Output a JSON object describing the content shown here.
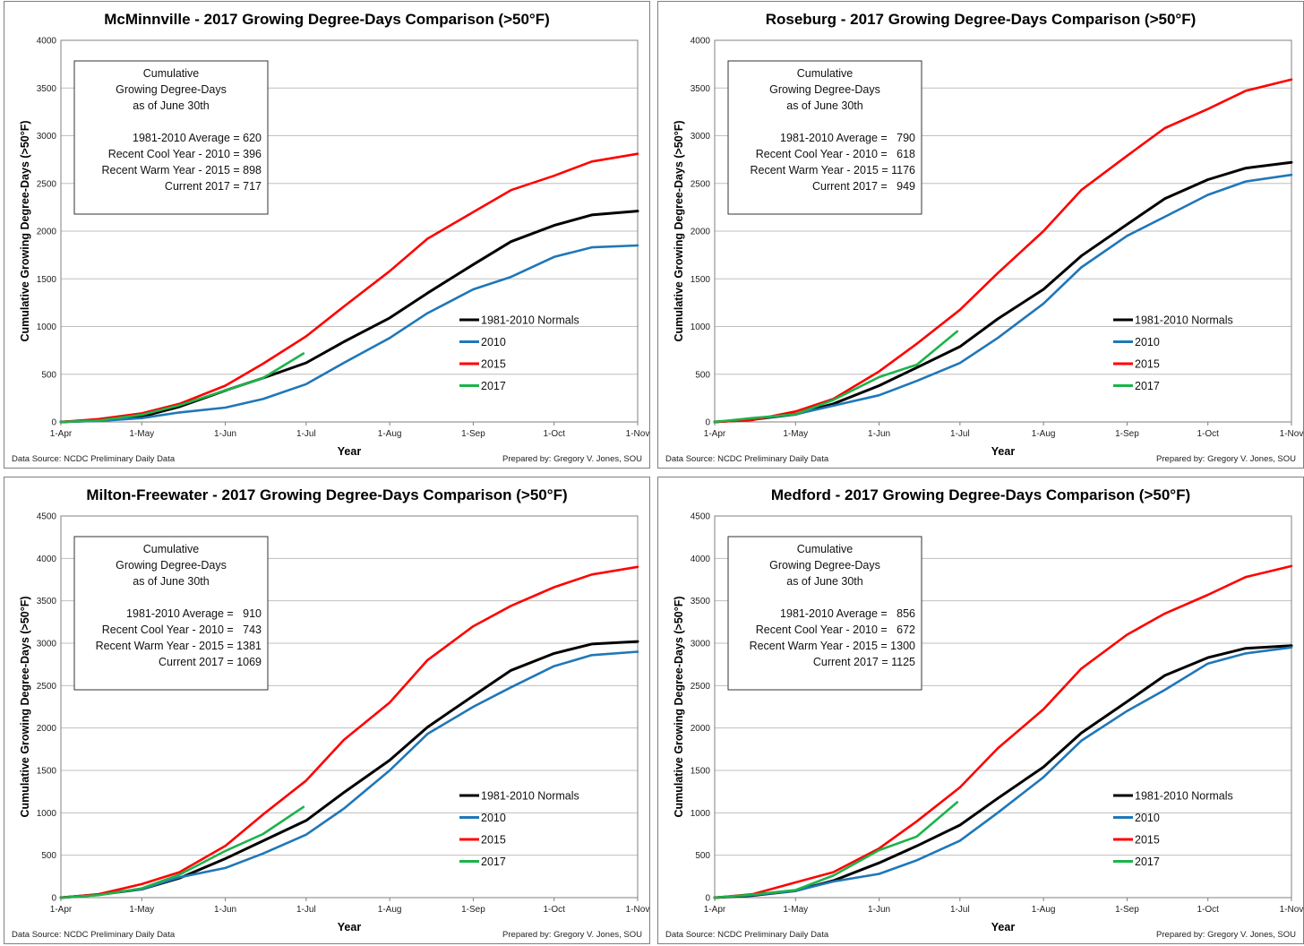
{
  "common": {
    "xlabel": "Year",
    "ylabel": "Cumulative Growing Degree-Days (>50°F)",
    "source": "Data Source: NCDC Preliminary Daily Data",
    "credit": "Prepared by: Gregory V. Jones, SOU",
    "x_ticks": [
      "1-Apr",
      "1-May",
      "1-Jun",
      "1-Jul",
      "1-Aug",
      "1-Sep",
      "1-Oct",
      "1-Nov"
    ],
    "x_tick_days": [
      0,
      30,
      61,
      91,
      122,
      153,
      183,
      214
    ],
    "box_header": [
      "Cumulative",
      "Growing Degree-Days",
      "as of June 30th"
    ],
    "legend": [
      "1981-2010 Normals",
      "2010",
      "2015",
      "2017"
    ],
    "colors": {
      "normals": "#000000",
      "y2010": "#1f77b8",
      "y2015": "#ff0000",
      "y2017": "#1db34a",
      "grid": "#bfbfbf"
    }
  },
  "chart_data": [
    {
      "type": "line",
      "title": "McMinnville - 2017 Growing Degree-Days Comparison (>50°F)",
      "ylim": [
        0,
        4000
      ],
      "ystep": 500,
      "box_lines": [
        "1981-2010 Average = 620",
        "Recent Cool Year - 2010 = 396",
        "Recent Warm Year - 2015 = 898",
        "Current 2017 = 717"
      ],
      "series": [
        {
          "name": "1981-2010 Normals",
          "x": [
            "1-Apr",
            "15-Apr",
            "1-May",
            "15-May",
            "1-Jun",
            "15-Jun",
            "1-Jul",
            "15-Jul",
            "1-Aug",
            "15-Aug",
            "1-Sep",
            "15-Sep",
            "1-Oct",
            "15-Oct",
            "1-Nov"
          ],
          "values": [
            0,
            15,
            55,
            160,
            330,
            460,
            620,
            840,
            1090,
            1350,
            1650,
            1890,
            2060,
            2170,
            2210
          ]
        },
        {
          "name": "2010",
          "x": [
            "1-Apr",
            "15-Apr",
            "1-May",
            "15-May",
            "1-Jun",
            "15-Jun",
            "1-Jul",
            "15-Jul",
            "1-Aug",
            "15-Aug",
            "1-Sep",
            "15-Sep",
            "1-Oct",
            "15-Oct",
            "1-Nov"
          ],
          "values": [
            0,
            10,
            40,
            100,
            150,
            240,
            396,
            620,
            880,
            1140,
            1390,
            1520,
            1730,
            1830,
            1850
          ]
        },
        {
          "name": "2015",
          "x": [
            "1-Apr",
            "15-Apr",
            "1-May",
            "15-May",
            "1-Jun",
            "15-Jun",
            "1-Jul",
            "15-Jul",
            "1-Aug",
            "15-Aug",
            "1-Sep",
            "15-Sep",
            "1-Oct",
            "15-Oct",
            "1-Nov"
          ],
          "values": [
            0,
            30,
            90,
            190,
            380,
            610,
            898,
            1210,
            1580,
            1920,
            2200,
            2430,
            2580,
            2730,
            2810
          ]
        },
        {
          "name": "2017",
          "x": [
            "1-Apr",
            "15-Apr",
            "1-May",
            "15-May",
            "1-Jun",
            "15-Jun",
            "30-Jun"
          ],
          "values": [
            0,
            15,
            75,
            175,
            330,
            460,
            717
          ]
        }
      ]
    },
    {
      "type": "line",
      "title": "Roseburg - 2017 Growing Degree-Days Comparison (>50°F)",
      "ylim": [
        0,
        4000
      ],
      "ystep": 500,
      "box_lines": [
        "1981-2010 Average =   790",
        "Recent Cool Year - 2010 =   618",
        "Recent Warm Year - 2015 = 1176",
        "Current 2017 =   949"
      ],
      "series": [
        {
          "name": "1981-2010 Normals",
          "x": [
            "1-Apr",
            "15-Apr",
            "1-May",
            "15-May",
            "1-Jun",
            "15-Jun",
            "1-Jul",
            "15-Jul",
            "1-Aug",
            "15-Aug",
            "1-Sep",
            "15-Sep",
            "1-Oct",
            "15-Oct",
            "1-Nov"
          ],
          "values": [
            0,
            25,
            80,
            190,
            380,
            570,
            790,
            1080,
            1390,
            1740,
            2070,
            2340,
            2540,
            2660,
            2720
          ]
        },
        {
          "name": "2010",
          "x": [
            "1-Apr",
            "15-Apr",
            "1-May",
            "15-May",
            "1-Jun",
            "15-Jun",
            "1-Jul",
            "15-Jul",
            "1-Aug",
            "15-Aug",
            "1-Sep",
            "15-Sep",
            "1-Oct",
            "15-Oct",
            "1-Nov"
          ],
          "values": [
            0,
            30,
            80,
            170,
            280,
            430,
            618,
            880,
            1240,
            1620,
            1950,
            2150,
            2380,
            2520,
            2590
          ]
        },
        {
          "name": "2015",
          "x": [
            "1-Apr",
            "15-Apr",
            "1-May",
            "15-May",
            "1-Jun",
            "15-Jun",
            "1-Jul",
            "15-Jul",
            "1-Aug",
            "15-Aug",
            "1-Sep",
            "15-Sep",
            "1-Oct",
            "15-Oct",
            "1-Nov"
          ],
          "values": [
            0,
            20,
            110,
            240,
            530,
            820,
            1176,
            1560,
            2000,
            2430,
            2790,
            3080,
            3280,
            3470,
            3590
          ]
        },
        {
          "name": "2017",
          "x": [
            "1-Apr",
            "15-Apr",
            "1-May",
            "15-May",
            "1-Jun",
            "15-Jun",
            "30-Jun"
          ],
          "values": [
            0,
            40,
            80,
            230,
            470,
            600,
            949
          ]
        }
      ]
    },
    {
      "type": "line",
      "title": "Milton-Freewater - 2017 Growing Degree-Days Comparison (>50°F)",
      "ylim": [
        0,
        4500
      ],
      "ystep": 500,
      "box_lines": [
        "1981-2010 Average =   910",
        "Recent Cool Year - 2010 =   743",
        "Recent Warm Year - 2015 = 1381",
        "Current 2017 = 1069"
      ],
      "series": [
        {
          "name": "1981-2010 Normals",
          "x": [
            "1-Apr",
            "15-Apr",
            "1-May",
            "15-May",
            "1-Jun",
            "15-Jun",
            "1-Jul",
            "15-Jul",
            "1-Aug",
            "15-Aug",
            "1-Sep",
            "15-Sep",
            "1-Oct",
            "15-Oct",
            "1-Nov"
          ],
          "values": [
            0,
            35,
            100,
            230,
            460,
            670,
            910,
            1240,
            1620,
            2010,
            2380,
            2680,
            2880,
            2990,
            3020
          ]
        },
        {
          "name": "2010",
          "x": [
            "1-Apr",
            "15-Apr",
            "1-May",
            "15-May",
            "1-Jun",
            "15-Jun",
            "1-Jul",
            "15-Jul",
            "1-Aug",
            "15-Aug",
            "1-Sep",
            "15-Sep",
            "1-Oct",
            "15-Oct",
            "1-Nov"
          ],
          "values": [
            0,
            40,
            100,
            240,
            350,
            520,
            743,
            1050,
            1500,
            1930,
            2250,
            2480,
            2730,
            2860,
            2900
          ]
        },
        {
          "name": "2015",
          "x": [
            "1-Apr",
            "15-Apr",
            "1-May",
            "15-May",
            "1-Jun",
            "15-Jun",
            "1-Jul",
            "15-Jul",
            "1-Aug",
            "15-Aug",
            "1-Sep",
            "15-Sep",
            "1-Oct",
            "15-Oct",
            "1-Nov"
          ],
          "values": [
            0,
            40,
            160,
            300,
            610,
            980,
            1381,
            1860,
            2300,
            2800,
            3200,
            3440,
            3660,
            3810,
            3900
          ]
        },
        {
          "name": "2017",
          "x": [
            "1-Apr",
            "15-Apr",
            "1-May",
            "15-May",
            "1-Jun",
            "15-Jun",
            "30-Jun"
          ],
          "values": [
            0,
            30,
            110,
            270,
            550,
            750,
            1069
          ]
        }
      ]
    },
    {
      "type": "line",
      "title": "Medford - 2017 Growing Degree-Days Comparison (>50°F)",
      "ylim": [
        0,
        4500
      ],
      "ystep": 500,
      "box_lines": [
        "1981-2010 Average =   856",
        "Recent Cool Year - 2010 =   672",
        "Recent Warm Year - 2015 = 1300",
        "Current 2017 = 1125"
      ],
      "series": [
        {
          "name": "1981-2010 Normals",
          "x": [
            "1-Apr",
            "15-Apr",
            "1-May",
            "15-May",
            "1-Jun",
            "15-Jun",
            "1-Jul",
            "15-Jul",
            "1-Aug",
            "15-Aug",
            "1-Sep",
            "15-Sep",
            "1-Oct",
            "15-Oct",
            "1-Nov"
          ],
          "values": [
            0,
            25,
            80,
            200,
            410,
            610,
            856,
            1170,
            1540,
            1940,
            2310,
            2620,
            2830,
            2940,
            2970
          ]
        },
        {
          "name": "2010",
          "x": [
            "1-Apr",
            "15-Apr",
            "1-May",
            "15-May",
            "1-Jun",
            "15-Jun",
            "1-Jul",
            "15-Jul",
            "1-Aug",
            "15-Aug",
            "1-Sep",
            "15-Sep",
            "1-Oct",
            "15-Oct",
            "1-Nov"
          ],
          "values": [
            0,
            30,
            80,
            190,
            280,
            440,
            672,
            1000,
            1420,
            1850,
            2200,
            2450,
            2760,
            2880,
            2950
          ]
        },
        {
          "name": "2015",
          "x": [
            "1-Apr",
            "15-Apr",
            "1-May",
            "15-May",
            "1-Jun",
            "15-Jun",
            "1-Jul",
            "15-Jul",
            "1-Aug",
            "15-Aug",
            "1-Sep",
            "15-Sep",
            "1-Oct",
            "15-Oct",
            "1-Nov"
          ],
          "values": [
            0,
            40,
            180,
            300,
            580,
            900,
            1300,
            1760,
            2220,
            2700,
            3100,
            3350,
            3570,
            3780,
            3910
          ]
        },
        {
          "name": "2017",
          "x": [
            "1-Apr",
            "15-Apr",
            "1-May",
            "15-May",
            "1-Jun",
            "15-Jun",
            "30-Jun"
          ],
          "values": [
            0,
            35,
            90,
            260,
            560,
            720,
            1125
          ]
        }
      ]
    }
  ]
}
